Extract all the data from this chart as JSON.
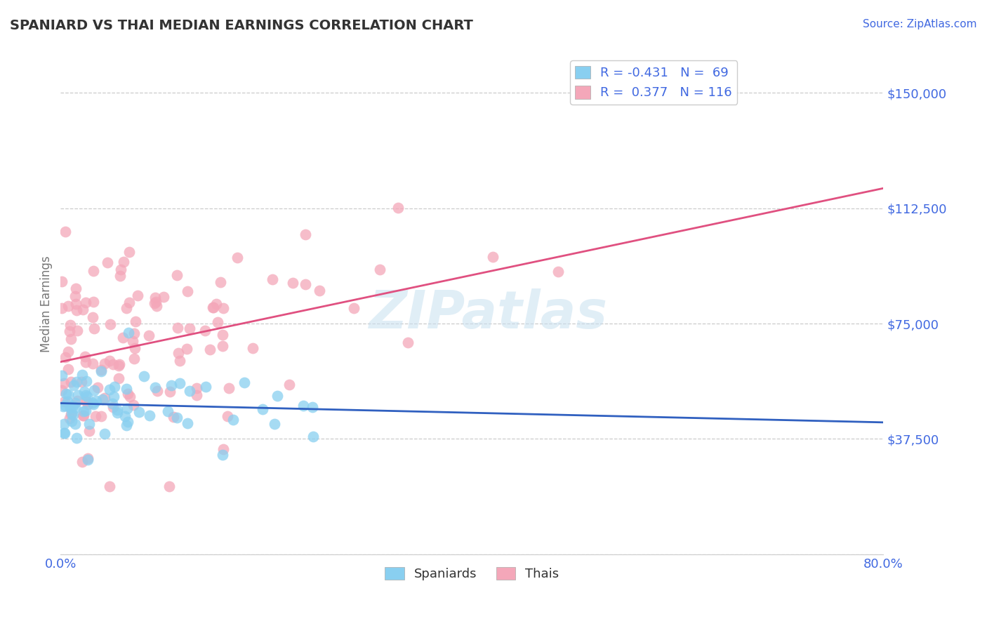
{
  "title": "SPANIARD VS THAI MEDIAN EARNINGS CORRELATION CHART",
  "source": "Source: ZipAtlas.com",
  "ylabel": "Median Earnings",
  "xlim": [
    0.0,
    0.8
  ],
  "ylim": [
    0,
    162500
  ],
  "yticks": [
    0,
    37500,
    75000,
    112500,
    150000
  ],
  "ytick_labels": [
    "",
    "$37,500",
    "$75,000",
    "$112,500",
    "$150,000"
  ],
  "spaniard_color": "#89CFF0",
  "thai_color": "#F4A7B9",
  "spaniard_line_color": "#3060C0",
  "thai_line_color": "#E05080",
  "R_spaniard": -0.431,
  "N_spaniard": 69,
  "R_thai": 0.377,
  "N_thai": 116,
  "background_color": "#ffffff",
  "grid_color": "#cccccc",
  "axis_label_color": "#4169E1",
  "watermark": "ZIPatlas"
}
